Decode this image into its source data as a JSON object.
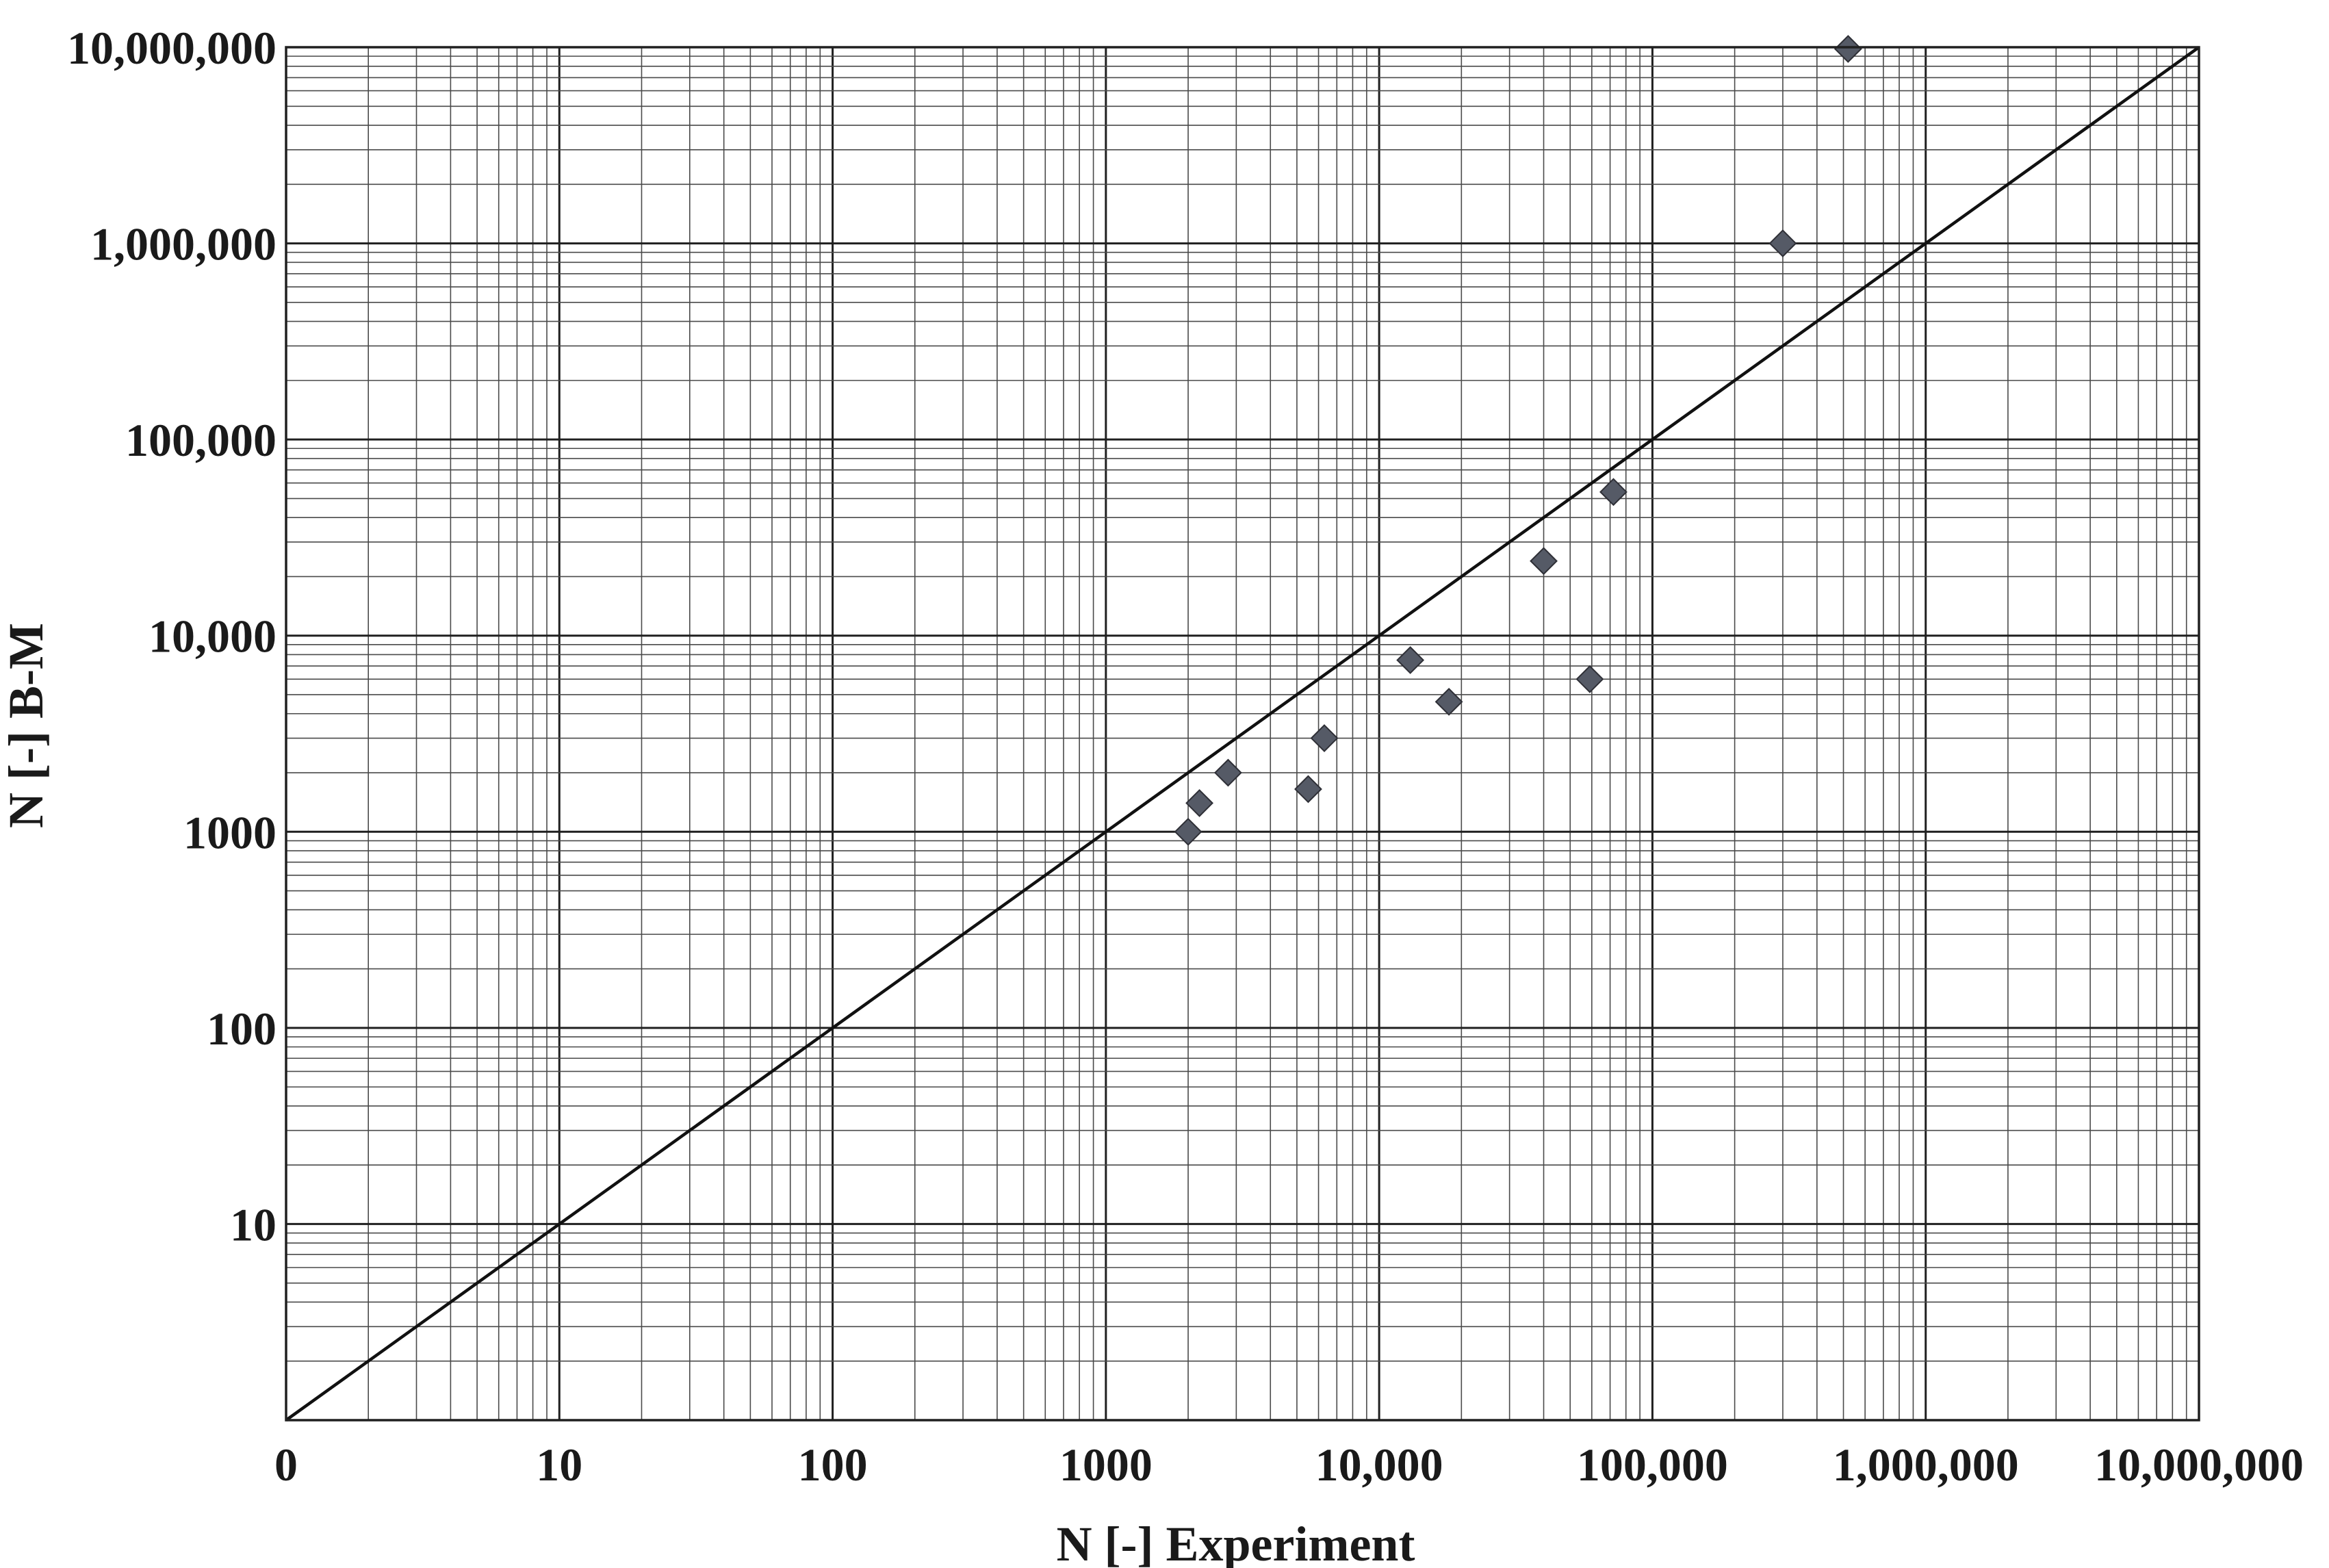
{
  "chart_data": {
    "type": "scatter",
    "title": "",
    "xlabel": "N [-]  Experiment",
    "ylabel": "N [-]  B-M",
    "x_scale": "log",
    "y_scale": "log",
    "xlim": [
      1,
      10000000
    ],
    "ylim": [
      1,
      10000000
    ],
    "grid": true,
    "x_ticks": [
      {
        "value": 1,
        "label": "0"
      },
      {
        "value": 10,
        "label": "10"
      },
      {
        "value": 100,
        "label": "100"
      },
      {
        "value": 1000,
        "label": "1000"
      },
      {
        "value": 10000,
        "label": "10,000"
      },
      {
        "value": 100000,
        "label": "100,000"
      },
      {
        "value": 1000000,
        "label": "1,000,000"
      },
      {
        "value": 10000000,
        "label": "10,000,000"
      }
    ],
    "y_ticks": [
      {
        "value": 10,
        "label": "10"
      },
      {
        "value": 100,
        "label": "100"
      },
      {
        "value": 1000,
        "label": "1000"
      },
      {
        "value": 10000,
        "label": "10,000"
      },
      {
        "value": 100000,
        "label": "100,000"
      },
      {
        "value": 1000000,
        "label": "1,000,000"
      },
      {
        "value": 10000000,
        "label": "10,000,000"
      }
    ],
    "reference_line": {
      "x": [
        1,
        10000000
      ],
      "y": [
        1,
        10000000
      ]
    },
    "points": [
      {
        "x": 2000,
        "y": 1000
      },
      {
        "x": 2200,
        "y": 1400
      },
      {
        "x": 2800,
        "y": 2000
      },
      {
        "x": 5500,
        "y": 1650
      },
      {
        "x": 6300,
        "y": 3000
      },
      {
        "x": 13000,
        "y": 7500
      },
      {
        "x": 18000,
        "y": 4600
      },
      {
        "x": 40000,
        "y": 24000
      },
      {
        "x": 59000,
        "y": 6000
      },
      {
        "x": 72000,
        "y": 54000
      },
      {
        "x": 300000,
        "y": 1000000
      },
      {
        "x": 520000,
        "y": 9800000
      }
    ],
    "colors": {
      "marker": "#555a66",
      "line": "#111111",
      "grid": "#202020"
    }
  }
}
